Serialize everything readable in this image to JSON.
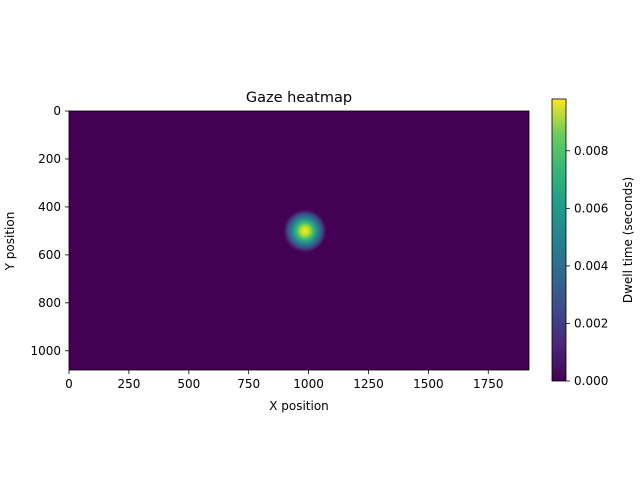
{
  "chart_data": {
    "type": "heatmap",
    "title": "Gaze heatmap",
    "xlabel": "X position",
    "ylabel": "Y position",
    "xlim": [
      0,
      1920
    ],
    "ylim": [
      1080,
      0
    ],
    "y_inverted": true,
    "xticks": [
      0,
      250,
      500,
      750,
      1000,
      1250,
      1500,
      1750
    ],
    "yticks": [
      0,
      200,
      400,
      600,
      800,
      1000
    ],
    "colormap": "viridis",
    "colorbar": {
      "label": "Dwell time (seconds)",
      "range": [
        0,
        0.0098
      ],
      "ticks": [
        "0.000",
        "0.002",
        "0.004",
        "0.006",
        "0.008"
      ]
    },
    "hotspot": {
      "x": 985,
      "y": 500,
      "peak": 0.0098,
      "sigma": 28
    },
    "background_value": 0
  }
}
